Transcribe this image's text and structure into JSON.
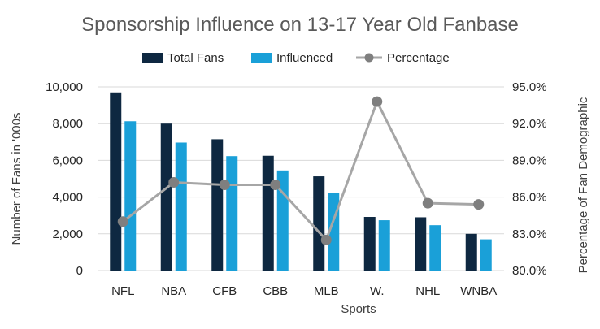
{
  "chart_data": {
    "type": "bar",
    "title": "Sponsorship Influence on 13-17 Year Old Fanbase",
    "xlabel": "Sports",
    "ylabel": "Number of Fans in '000s",
    "y2label": "Percentage of Fan Demographic",
    "categories": [
      "NFL",
      "NBA",
      "CFB",
      "CBB",
      "MLB",
      "W.",
      "NHL",
      "WNBA"
    ],
    "series": [
      {
        "name": "Total Fans",
        "type": "bar",
        "axis": "left",
        "color": "#0e2841",
        "values": [
          9700,
          8000,
          7150,
          6250,
          5130,
          2920,
          2900,
          2000
        ]
      },
      {
        "name": "Influenced",
        "type": "bar",
        "axis": "left",
        "color": "#1aa0d8",
        "values": [
          8130,
          6970,
          6230,
          5450,
          4230,
          2740,
          2470,
          1700
        ]
      },
      {
        "name": "Percentage",
        "type": "line",
        "axis": "right",
        "color": "#a6a6a6",
        "values": [
          84.0,
          87.2,
          87.0,
          87.0,
          82.5,
          93.8,
          85.5,
          85.4
        ]
      }
    ],
    "ylim": [
      0,
      10000
    ],
    "y_ticks": [
      "0",
      "2,000",
      "4,000",
      "6,000",
      "8,000",
      "10,000"
    ],
    "y_tick_values": [
      0,
      2000,
      4000,
      6000,
      8000,
      10000
    ],
    "y2lim": [
      80,
      95
    ],
    "y2_ticks": [
      "80.0%",
      "83.0%",
      "86.0%",
      "89.0%",
      "92.0%",
      "95.0%"
    ],
    "y2_tick_values": [
      80,
      83,
      86,
      89,
      92,
      95
    ],
    "grid": true,
    "legend_position": "top"
  }
}
